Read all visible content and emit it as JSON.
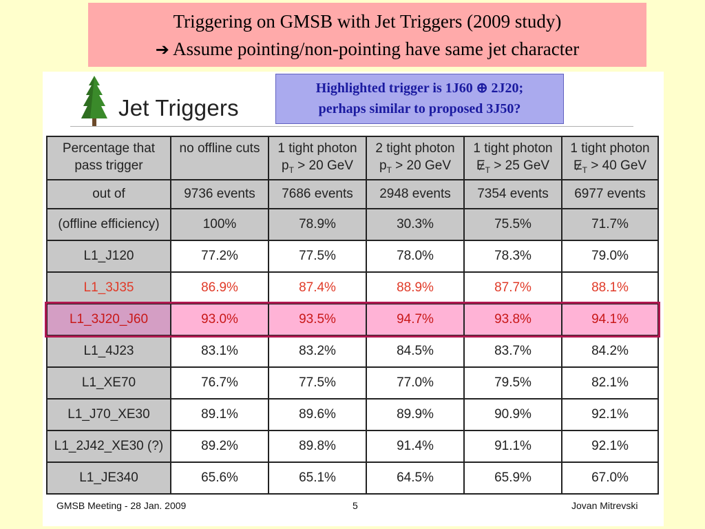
{
  "title": {
    "line1": "Triggering on GMSB with Jet Triggers (2009 study)",
    "arrow": "➔",
    "line2": "Assume pointing/non-pointing have same jet character"
  },
  "slide": {
    "heading": "Jet Triggers",
    "note_line1": "Highlighted trigger is 1J60 ⊕ 2J20;",
    "note_line2": "perhaps similar to proposed 3J50?",
    "icons": {
      "logo": "pine-tree-icon"
    }
  },
  "table": {
    "corner": [
      "Percentage that",
      "pass trigger"
    ],
    "columns": [
      {
        "line1": "no offline cuts",
        "line2_pre": "",
        "line2_sym": "",
        "line2_post": ""
      },
      {
        "line1": "1 tight photon",
        "line2_pre": "p",
        "line2_sym": "T",
        "line2_post": " > 20 GeV"
      },
      {
        "line1": "2 tight photon",
        "line2_pre": "p",
        "line2_sym": "T",
        "line2_post": " > 20 GeV"
      },
      {
        "line1": "1 tight photon",
        "line2_pre": "E",
        "line2_sym": "T",
        "line2_post": " > 25 GeV"
      },
      {
        "line1": "1 tight photon",
        "line2_pre": "E",
        "line2_sym": "T",
        "line2_post": " > 40 GeV"
      }
    ],
    "outof_label": "out of",
    "events": [
      "9736 events",
      "7686 events",
      "2948 events",
      "7354 events",
      "6977 events"
    ],
    "efficiency_label": "(offline efficiency)",
    "efficiency": [
      "100%",
      "78.9%",
      "30.3%",
      "75.5%",
      "71.7%"
    ],
    "rows": [
      {
        "name": "L1_J120",
        "values": [
          "77.2%",
          "77.5%",
          "78.0%",
          "78.3%",
          "79.0%"
        ]
      },
      {
        "name": "L1_3J35",
        "values": [
          "86.9%",
          "87.4%",
          "88.9%",
          "87.7%",
          "88.1%"
        ]
      },
      {
        "name": "L1_3J20_J60",
        "values": [
          "93.0%",
          "93.5%",
          "94.7%",
          "93.8%",
          "94.1%"
        ]
      },
      {
        "name": "L1_4J23",
        "values": [
          "83.1%",
          "83.2%",
          "84.5%",
          "83.7%",
          "84.2%"
        ]
      },
      {
        "name": "L1_XE70",
        "values": [
          "76.7%",
          "77.5%",
          "77.0%",
          "79.5%",
          "82.1%"
        ]
      },
      {
        "name": "L1_J70_XE30",
        "values": [
          "89.1%",
          "89.6%",
          "89.9%",
          "90.9%",
          "92.1%"
        ]
      },
      {
        "name": "L1_2J42_XE30 (?)",
        "values": [
          "89.2%",
          "89.8%",
          "91.4%",
          "91.1%",
          "92.1%"
        ]
      },
      {
        "name": "L1_JE340",
        "values": [
          "65.6%",
          "65.1%",
          "64.5%",
          "65.9%",
          "67.0%"
        ]
      }
    ]
  },
  "footer": {
    "left": "GMSB Meeting - 28 Jan. 2009",
    "page": "5",
    "author": "Jovan Mitrevski"
  },
  "colors": {
    "background": "#ffffcc",
    "title_bg": "#ffaaaa",
    "note_bg": "#aaaaee",
    "note_text": "#1a1aa0",
    "red_row": "#e03a28",
    "highlight_row": "#ffb3d6"
  }
}
